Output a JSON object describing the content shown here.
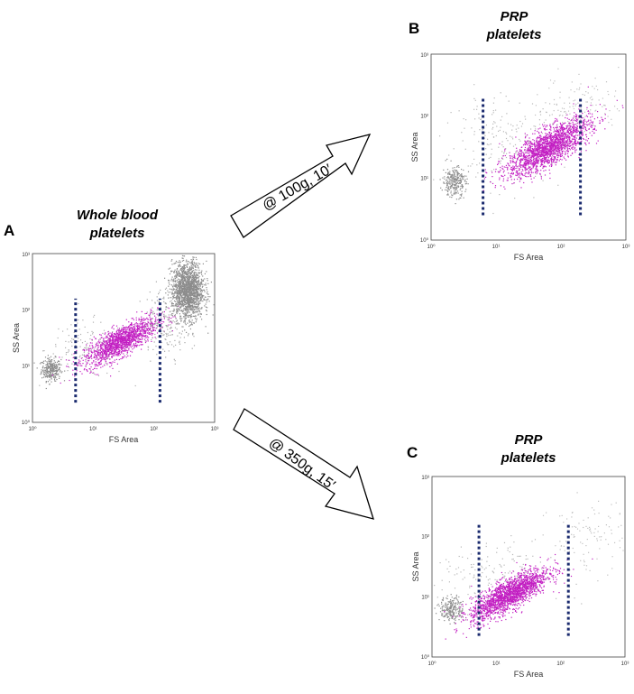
{
  "panels": {
    "A": {
      "letter": "A",
      "title_line1": "Whole blood",
      "title_line2": "platelets",
      "xlabel": "FS Area",
      "ylabel": "SS Area"
    },
    "B": {
      "letter": "B",
      "title_line1": "PRP",
      "title_line2": "platelets",
      "xlabel": "FS Area",
      "ylabel": "SS Area"
    },
    "C": {
      "letter": "C",
      "title_line1": "PRP",
      "title_line2": "platelets",
      "xlabel": "FS Area",
      "ylabel": "SS Area"
    }
  },
  "tick_labels": {
    "x": [
      "10⁰",
      "10¹",
      "10²",
      "10³"
    ],
    "y": [
      "10⁰",
      "10¹",
      "10²",
      "10³"
    ]
  },
  "arrows": {
    "top": {
      "label": "@ 100g, 10′"
    },
    "bottom": {
      "label": "@ 350g, 15′"
    }
  },
  "colors": {
    "background_events": "#8c8c8c",
    "gated_events": "#c21ec2",
    "gate_line": "#1a2a6e",
    "frame": "#444444"
  }
}
